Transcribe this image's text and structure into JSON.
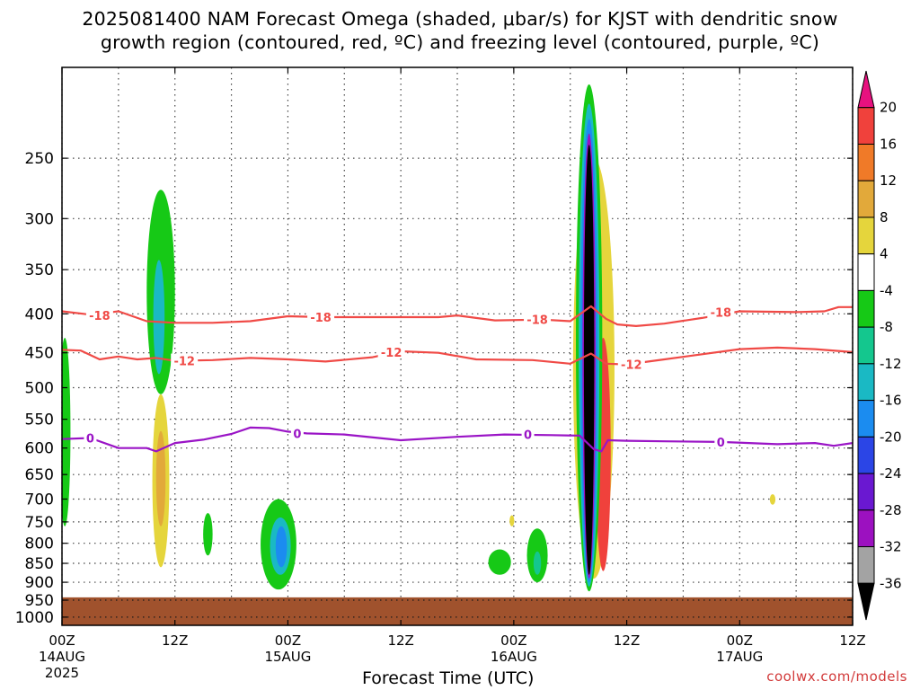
{
  "title": {
    "line1": "2025081400 NAM Forecast Omega (shaded, μbar/s) for KJST with dendritic snow",
    "line2": "growth region (contoured, red, ºC) and freezing level (contoured, purple, ºC)"
  },
  "credit": "coolwx.com/models",
  "chart_data": {
    "type": "heatmap",
    "xlabel": "Forecast Time (UTC)",
    "ylabel": "",
    "x_ticks": [
      {
        "hour": 0,
        "label": "00Z",
        "sub": "14AUG",
        "sub2": "2025"
      },
      {
        "hour": 12,
        "label": "12Z",
        "sub": "",
        "sub2": ""
      },
      {
        "hour": 24,
        "label": "00Z",
        "sub": "15AUG",
        "sub2": ""
      },
      {
        "hour": 36,
        "label": "12Z",
        "sub": "",
        "sub2": ""
      },
      {
        "hour": 48,
        "label": "00Z",
        "sub": "16AUG",
        "sub2": ""
      },
      {
        "hour": 60,
        "label": "12Z",
        "sub": "",
        "sub2": ""
      },
      {
        "hour": 72,
        "label": "00Z",
        "sub": "17AUG",
        "sub2": ""
      },
      {
        "hour": 84,
        "label": "12Z",
        "sub": "",
        "sub2": ""
      }
    ],
    "xlim_hours": [
      0,
      84
    ],
    "y_ticks_hpa": [
      250,
      300,
      350,
      400,
      450,
      500,
      550,
      600,
      650,
      700,
      750,
      800,
      850,
      900,
      950,
      1000
    ],
    "ylim_hpa": [
      1025,
      190
    ],
    "y_scale": "log",
    "grid": true,
    "ground_pressure_hpa": 942,
    "colorbar": {
      "levels": [
        20,
        16,
        12,
        8,
        4,
        -4,
        -8,
        -12,
        -16,
        -20,
        -24,
        -28,
        -32,
        -36
      ],
      "colors": [
        "#e8117f",
        "#f0413c",
        "#f07a28",
        "#e2a93a",
        "#e5d53c",
        "#ffffff",
        "#16c916",
        "#14c78e",
        "#1ab9c4",
        "#1b8cf0",
        "#2b45e6",
        "#6a18d1",
        "#9c11c0",
        "#a3a3a3",
        "#000000"
      ]
    },
    "omega_features": [
      {
        "name": "t0-left",
        "hour": 0.3,
        "p_top": 430,
        "p_bottom": 760,
        "width_h": 1.2,
        "level": -4
      },
      {
        "name": "t10-upper",
        "hour": 10.5,
        "p_top": 275,
        "p_bottom": 510,
        "width_h": 3.0,
        "level": -4
      },
      {
        "name": "t10-upper-core",
        "hour": 10.3,
        "p_top": 340,
        "p_bottom": 480,
        "width_h": 1.2,
        "level": -12
      },
      {
        "name": "t10-lower",
        "hour": 10.5,
        "p_top": 510,
        "p_bottom": 860,
        "width_h": 1.8,
        "level": 4
      },
      {
        "name": "t10-lower-core",
        "hour": 10.5,
        "p_top": 570,
        "p_bottom": 760,
        "width_h": 1.0,
        "level": 8
      },
      {
        "name": "t15",
        "hour": 15.5,
        "p_top": 730,
        "p_bottom": 830,
        "width_h": 1.0,
        "level": -4
      },
      {
        "name": "t24",
        "hour": 23.0,
        "p_top": 700,
        "p_bottom": 920,
        "width_h": 3.8,
        "level": -4
      },
      {
        "name": "t24-core",
        "hour": 23.2,
        "p_top": 740,
        "p_bottom": 880,
        "width_h": 2.2,
        "level": -12
      },
      {
        "name": "t24-inner",
        "hour": 23.3,
        "p_top": 760,
        "p_bottom": 860,
        "width_h": 1.2,
        "level": -16
      },
      {
        "name": "t48-dot",
        "hour": 47.8,
        "p_top": 735,
        "p_bottom": 760,
        "width_h": 0.5,
        "level": 4
      },
      {
        "name": "t46",
        "hour": 46.5,
        "p_top": 815,
        "p_bottom": 880,
        "width_h": 2.4,
        "level": -4
      },
      {
        "name": "t50",
        "hour": 50.5,
        "p_top": 765,
        "p_bottom": 900,
        "width_h": 2.2,
        "level": -4
      },
      {
        "name": "t50-core",
        "hour": 50.5,
        "p_top": 820,
        "p_bottom": 880,
        "width_h": 0.8,
        "level": -8
      },
      {
        "name": "t56-yellow",
        "hour": 56.5,
        "p_top": 250,
        "p_bottom": 890,
        "width_h": 4.4,
        "level": 4
      },
      {
        "name": "t56-red",
        "hour": 57.5,
        "p_top": 430,
        "p_bottom": 870,
        "width_h": 1.6,
        "level": 16
      },
      {
        "name": "t56-green",
        "hour": 56.0,
        "p_top": 200,
        "p_bottom": 925,
        "width_h": 2.8,
        "level": -4
      },
      {
        "name": "t56-teal",
        "hour": 56.0,
        "p_top": 212,
        "p_bottom": 912,
        "width_h": 2.2,
        "level": -12
      },
      {
        "name": "t56-blue",
        "hour": 56.0,
        "p_top": 222,
        "p_bottom": 900,
        "width_h": 1.8,
        "level": -16
      },
      {
        "name": "t56-purple",
        "hour": 56.0,
        "p_top": 232,
        "p_bottom": 890,
        "width_h": 1.4,
        "level": -28
      },
      {
        "name": "t56-black",
        "hour": 56.0,
        "p_top": 240,
        "p_bottom": 880,
        "width_h": 1.1,
        "level": -36
      },
      {
        "name": "t75-dot",
        "hour": 75.5,
        "p_top": 690,
        "p_bottom": 712,
        "width_h": 0.6,
        "level": 4
      }
    ],
    "contours": [
      {
        "name": "dgz-minus18",
        "value": "-18",
        "color": "#f04a46",
        "points": [
          [
            0,
            397
          ],
          [
            3,
            401
          ],
          [
            6,
            397
          ],
          [
            9,
            409
          ],
          [
            12,
            411
          ],
          [
            16,
            411
          ],
          [
            20,
            409
          ],
          [
            24,
            403
          ],
          [
            28,
            404
          ],
          [
            34,
            404
          ],
          [
            40,
            404
          ],
          [
            42,
            402
          ],
          [
            46,
            408
          ],
          [
            51,
            407
          ],
          [
            54,
            409
          ],
          [
            56.2,
            391
          ],
          [
            57.8,
            406
          ],
          [
            59,
            413
          ],
          [
            61,
            415
          ],
          [
            64,
            412
          ],
          [
            68,
            405
          ],
          [
            72,
            397
          ],
          [
            78,
            398
          ],
          [
            81,
            397
          ],
          [
            82.5,
            392
          ],
          [
            84,
            392
          ]
        ],
        "labels": [
          [
            4,
            402
          ],
          [
            27.5,
            404
          ],
          [
            50.5,
            407
          ],
          [
            70,
            398
          ]
        ]
      },
      {
        "name": "dgz-minus12",
        "value": "-12",
        "color": "#f04a46",
        "points": [
          [
            0,
            446
          ],
          [
            2,
            447
          ],
          [
            4,
            459
          ],
          [
            6,
            455
          ],
          [
            8,
            459
          ],
          [
            10,
            457
          ],
          [
            12,
            461
          ],
          [
            16,
            460
          ],
          [
            20,
            457
          ],
          [
            24,
            459
          ],
          [
            28,
            462
          ],
          [
            33,
            456
          ],
          [
            36,
            448
          ],
          [
            40,
            450
          ],
          [
            44,
            459
          ],
          [
            50,
            460
          ],
          [
            54,
            465
          ],
          [
            56.2,
            451
          ],
          [
            57.8,
            465
          ],
          [
            60,
            466
          ],
          [
            64,
            459
          ],
          [
            68,
            452
          ],
          [
            72,
            445
          ],
          [
            76,
            443
          ],
          [
            80,
            445
          ],
          [
            84,
            449
          ]
        ],
        "labels": [
          [
            13,
            461
          ],
          [
            35,
            449
          ],
          [
            60.5,
            466
          ]
        ]
      },
      {
        "name": "freezing-level",
        "value": "0",
        "color": "#9a14c6",
        "points": [
          [
            0,
            584
          ],
          [
            3,
            582
          ],
          [
            6,
            600
          ],
          [
            9,
            600
          ],
          [
            10,
            606
          ],
          [
            12,
            591
          ],
          [
            15,
            585
          ],
          [
            18,
            575
          ],
          [
            20,
            564
          ],
          [
            22,
            565
          ],
          [
            24,
            571
          ],
          [
            26,
            574
          ],
          [
            30,
            576
          ],
          [
            36,
            586
          ],
          [
            42,
            580
          ],
          [
            47,
            576
          ],
          [
            52,
            577
          ],
          [
            55,
            578
          ],
          [
            56.5,
            602
          ],
          [
            57.3,
            606
          ],
          [
            58,
            586
          ],
          [
            60,
            587
          ],
          [
            64,
            588
          ],
          [
            70,
            589
          ],
          [
            76,
            593
          ],
          [
            80,
            591
          ],
          [
            82,
            596
          ],
          [
            84,
            591
          ]
        ],
        "labels": [
          [
            3,
            582
          ],
          [
            25,
            574
          ],
          [
            49.5,
            576
          ],
          [
            70,
            589
          ]
        ]
      }
    ]
  }
}
